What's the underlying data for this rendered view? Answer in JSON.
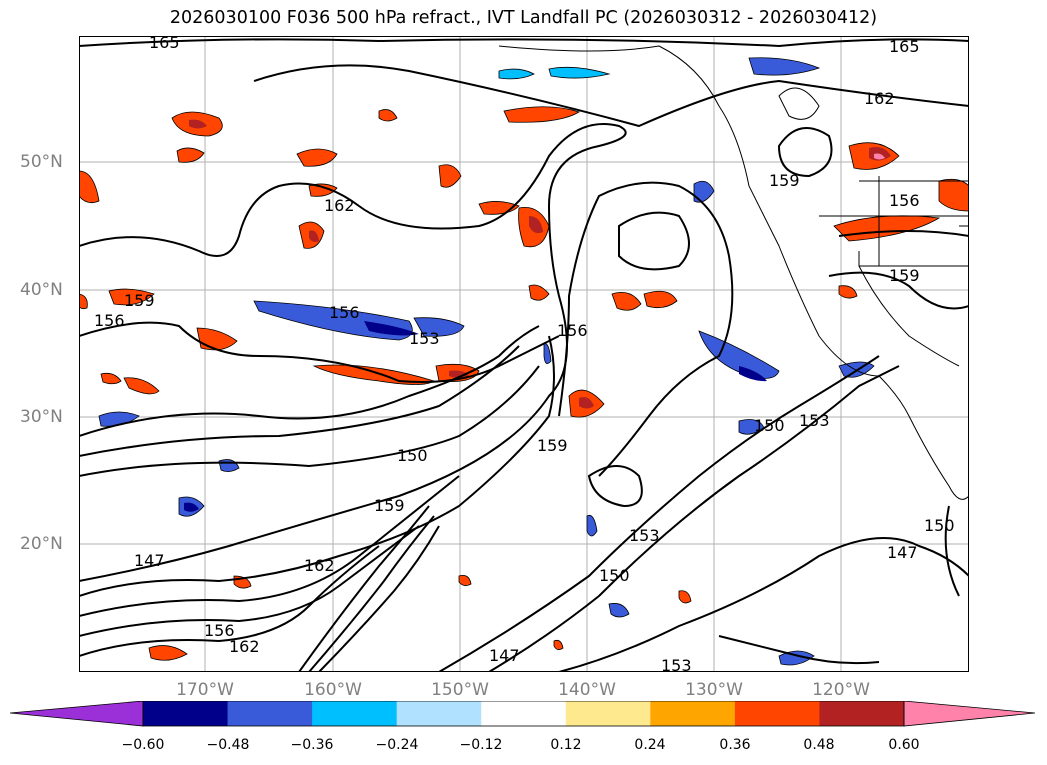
{
  "title": "2026030100 F036 500 hPa refract., IVT Landfall PC (2026030312 - 2026030412)",
  "lat_labels": [
    "50°N",
    "40°N",
    "30°N",
    "20°N"
  ],
  "lon_labels": [
    "170°W",
    "160°W",
    "150°W",
    "140°W",
    "130°W",
    "120°W"
  ],
  "contour_labels": [
    "165",
    "165",
    "162",
    "162",
    "159",
    "159",
    "159",
    "159",
    "159",
    "156",
    "156",
    "156",
    "156",
    "153",
    "153",
    "153",
    "153",
    "150",
    "150",
    "150",
    "150",
    "147",
    "147",
    "147",
    "162",
    "162",
    "156"
  ],
  "colorbar": {
    "colors": [
      "#9b30d9",
      "#00008b",
      "#3a5bd9",
      "#00bfff",
      "#b0e2ff",
      "#ffffff",
      "#ffe98f",
      "#ffa500",
      "#ff4500",
      "#b22222",
      "#ff82ab"
    ],
    "tick_labels": [
      "−0.60",
      "−0.48",
      "−0.36",
      "−0.24",
      "−0.12",
      "0.12",
      "0.24",
      "0.36",
      "0.48",
      "0.60"
    ]
  }
}
